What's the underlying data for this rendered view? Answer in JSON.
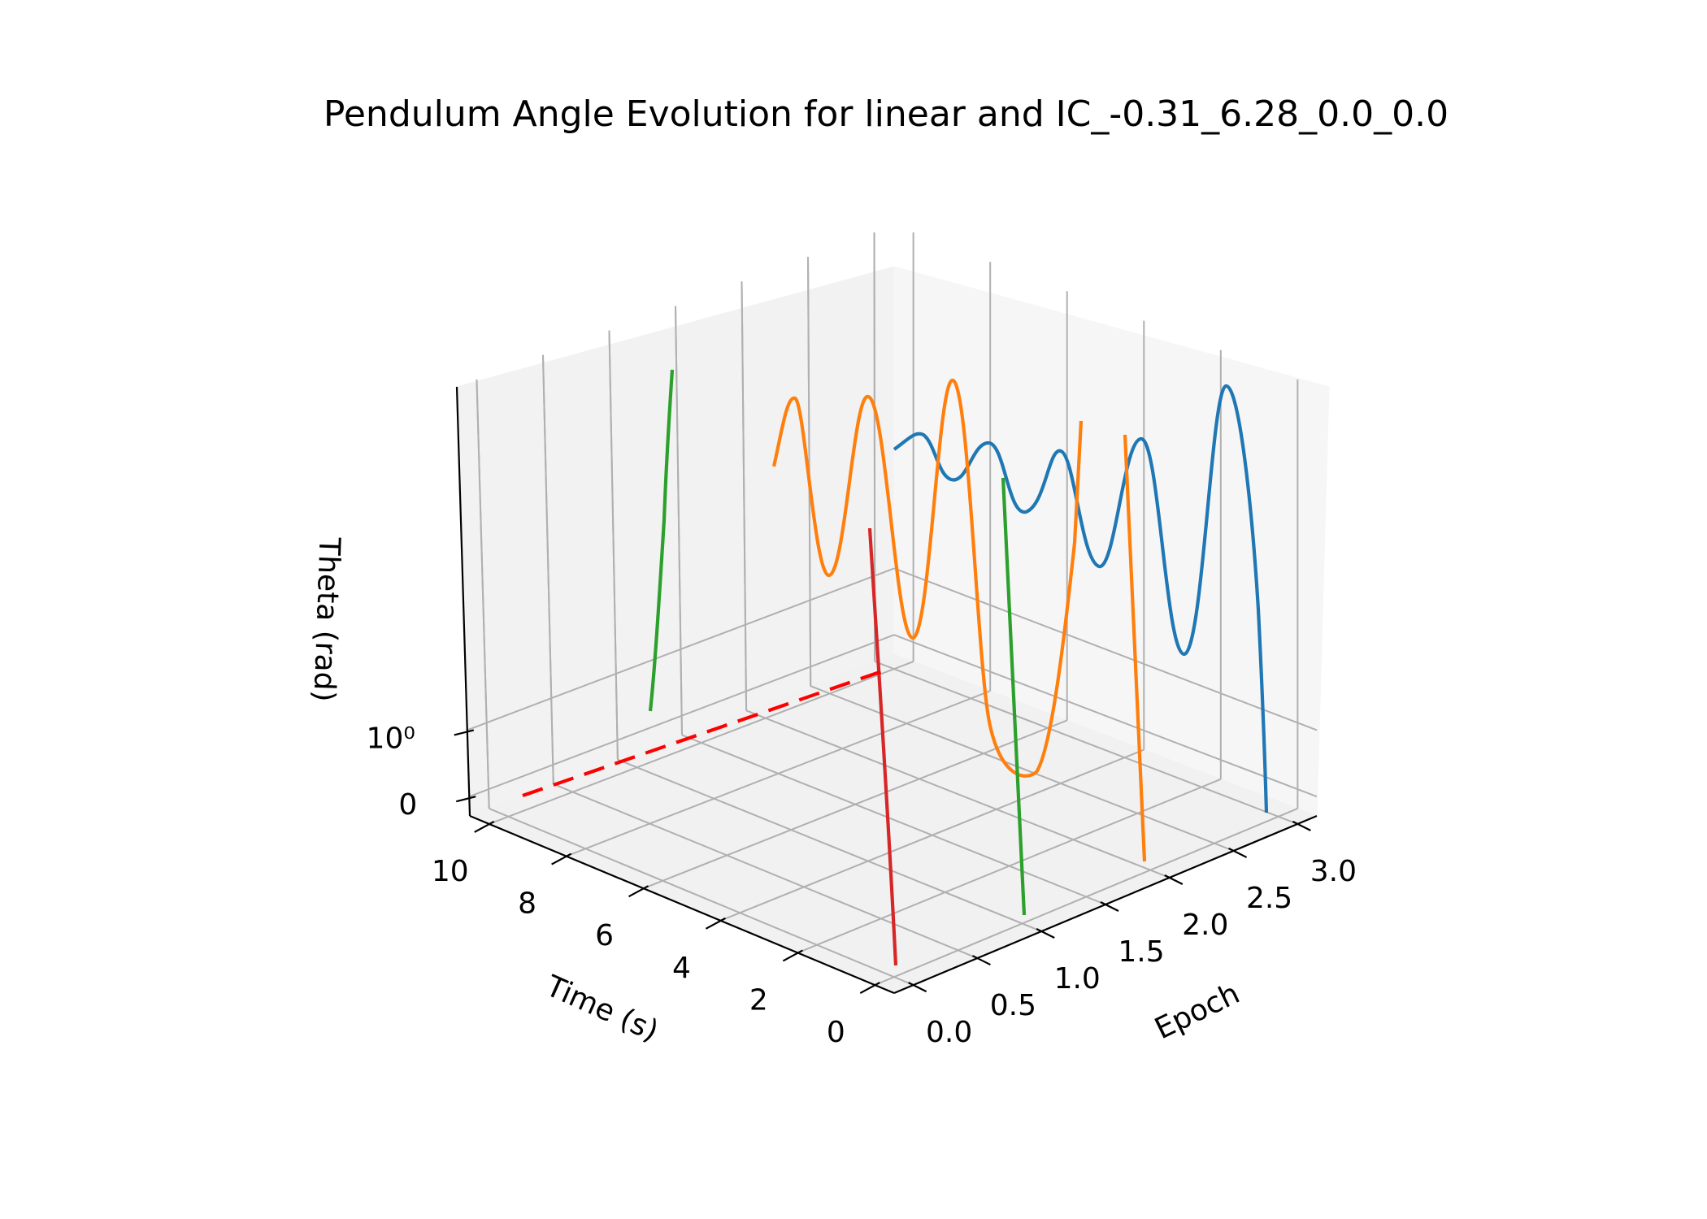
{
  "chart_data": {
    "type": "line",
    "projection": "3d",
    "title": "Pendulum Angle Evolution for linear and IC_-0.31_6.28_0.0_0.0",
    "xlabel": "Epoch",
    "ylabel": "Time (s)",
    "zlabel": "Theta (rad)",
    "x_ticks": [
      "0.0",
      "0.5",
      "1.0",
      "1.5",
      "2.0",
      "2.5",
      "3.0"
    ],
    "y_ticks": [
      "0",
      "2",
      "4",
      "6",
      "8",
      "10"
    ],
    "z_ticks": [
      "0",
      "10⁰"
    ],
    "z_scale": "symlog",
    "xlim": [
      -0.15,
      3.15
    ],
    "ylim": [
      -0.5,
      10.5
    ],
    "grid": true,
    "colors": {
      "blue": "#1f77b4",
      "orange": "#ff7f0e",
      "green": "#2ca02c",
      "red": "#d62728",
      "reference": "#ff0000",
      "pane_left": "#f2f2f2",
      "pane_right": "#f6f6f6",
      "pane_floor": "#f1f1f1"
    },
    "series": [
      {
        "color": "#1f77b4",
        "style": "solid",
        "epoch": 3,
        "time_range": [
          0,
          10
        ],
        "shape": "oscillation growing toward t=0"
      },
      {
        "color": "#ff7f0e",
        "style": "solid",
        "epoch": 2,
        "time_range": [
          0,
          10
        ],
        "shape": "oscillation growing toward t=0"
      },
      {
        "color": "#2ca02c",
        "style": "solid",
        "epoch": 1,
        "time_range": [
          0,
          10
        ],
        "shape": "monotonic rise"
      },
      {
        "color": "#d62728",
        "style": "solid",
        "epoch": 0,
        "time_range": [
          0,
          10
        ],
        "shape": "monotonic rise"
      },
      {
        "color": "#ff0000",
        "style": "dashed",
        "epoch": 0,
        "time_range": [
          0,
          10
        ],
        "shape": "reference at 0.31"
      }
    ]
  }
}
